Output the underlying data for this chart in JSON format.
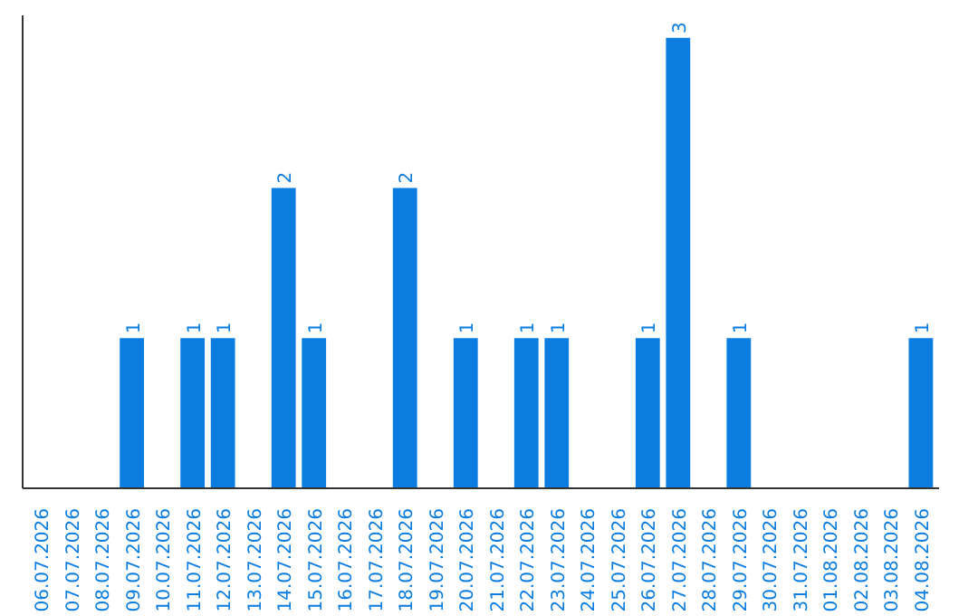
{
  "chart_data": {
    "type": "bar",
    "categories": [
      "06.07.2026",
      "07.07.2026",
      "08.07.2026",
      "09.07.2026",
      "10.07.2026",
      "11.07.2026",
      "12.07.2026",
      "13.07.2026",
      "14.07.2026",
      "15.07.2026",
      "16.07.2026",
      "17.07.2026",
      "18.07.2026",
      "19.07.2026",
      "20.07.2026",
      "21.07.2026",
      "22.07.2026",
      "23.07.2026",
      "24.07.2026",
      "25.07.2026",
      "26.07.2026",
      "27.07.2026",
      "28.07.2026",
      "29.07.2026",
      "30.07.2026",
      "31.07.2026",
      "01.08.2026",
      "02.08.2026",
      "03.08.2026",
      "04.08.2026"
    ],
    "values": [
      0,
      0,
      0,
      1,
      0,
      1,
      1,
      0,
      2,
      1,
      0,
      0,
      2,
      0,
      1,
      0,
      1,
      1,
      0,
      0,
      1,
      3,
      0,
      1,
      0,
      0,
      0,
      0,
      0,
      1
    ],
    "value_labels": [
      null,
      null,
      null,
      "1",
      null,
      "1",
      "1",
      null,
      "2",
      "1",
      null,
      null,
      "2",
      null,
      "1",
      null,
      "1",
      "1",
      null,
      null,
      "1",
      "3",
      null,
      "1",
      null,
      null,
      null,
      null,
      null,
      "1"
    ],
    "color": "#0b7de0",
    "tick_labels": "x",
    "grid": false
  }
}
